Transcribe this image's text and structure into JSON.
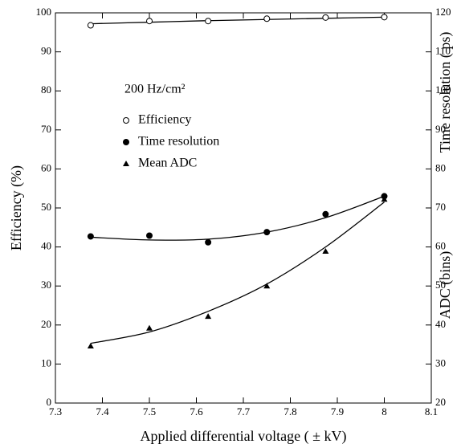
{
  "chart_data": {
    "type": "scatter",
    "annotation": "200 Hz/cm²",
    "xlabel": "Applied differential voltage ( ± kV)",
    "ylabel": "Efficiency (%)",
    "y2labels": [
      "Time resolution ( ps)",
      "ADC (bins)"
    ],
    "x": [
      7.375,
      7.5,
      7.625,
      7.75,
      7.875,
      8.0
    ],
    "xlim": [
      7.3,
      8.1
    ],
    "xticks": [
      7.3,
      7.4,
      7.5,
      7.6,
      7.7,
      7.8,
      7.9,
      8,
      8.1
    ],
    "ylim": [
      0,
      100
    ],
    "yticks": [
      0,
      10,
      20,
      30,
      40,
      50,
      60,
      70,
      80,
      90,
      100
    ],
    "y2lim": [
      20,
      120
    ],
    "y2ticks": [
      20,
      30,
      40,
      50,
      60,
      70,
      80,
      90,
      100,
      110,
      120
    ],
    "color": "#000000",
    "series": [
      {
        "name": "Efficiency",
        "marker": "open-circle",
        "values": [
          96.8,
          97.9,
          97.9,
          98.5,
          98.8,
          98.9
        ],
        "fit": [
          97.2,
          97.6,
          98.0,
          98.3,
          98.6,
          98.9
        ]
      },
      {
        "name": "Time resolution",
        "marker": "filled-circle",
        "axis": "y2",
        "values": [
          62.7,
          62.9,
          61.2,
          63.8,
          68.4,
          73.0
        ],
        "fit": [
          62.5,
          61.8,
          62.0,
          63.8,
          67.5,
          73.0
        ]
      },
      {
        "name": "Mean ADC",
        "marker": "triangle",
        "axis": "y2",
        "values": [
          34.6,
          39.2,
          42.2,
          50.0,
          58.9,
          72.2
        ],
        "fit": [
          35.3,
          38.2,
          43.5,
          50.5,
          60.0,
          71.5
        ]
      }
    ]
  }
}
